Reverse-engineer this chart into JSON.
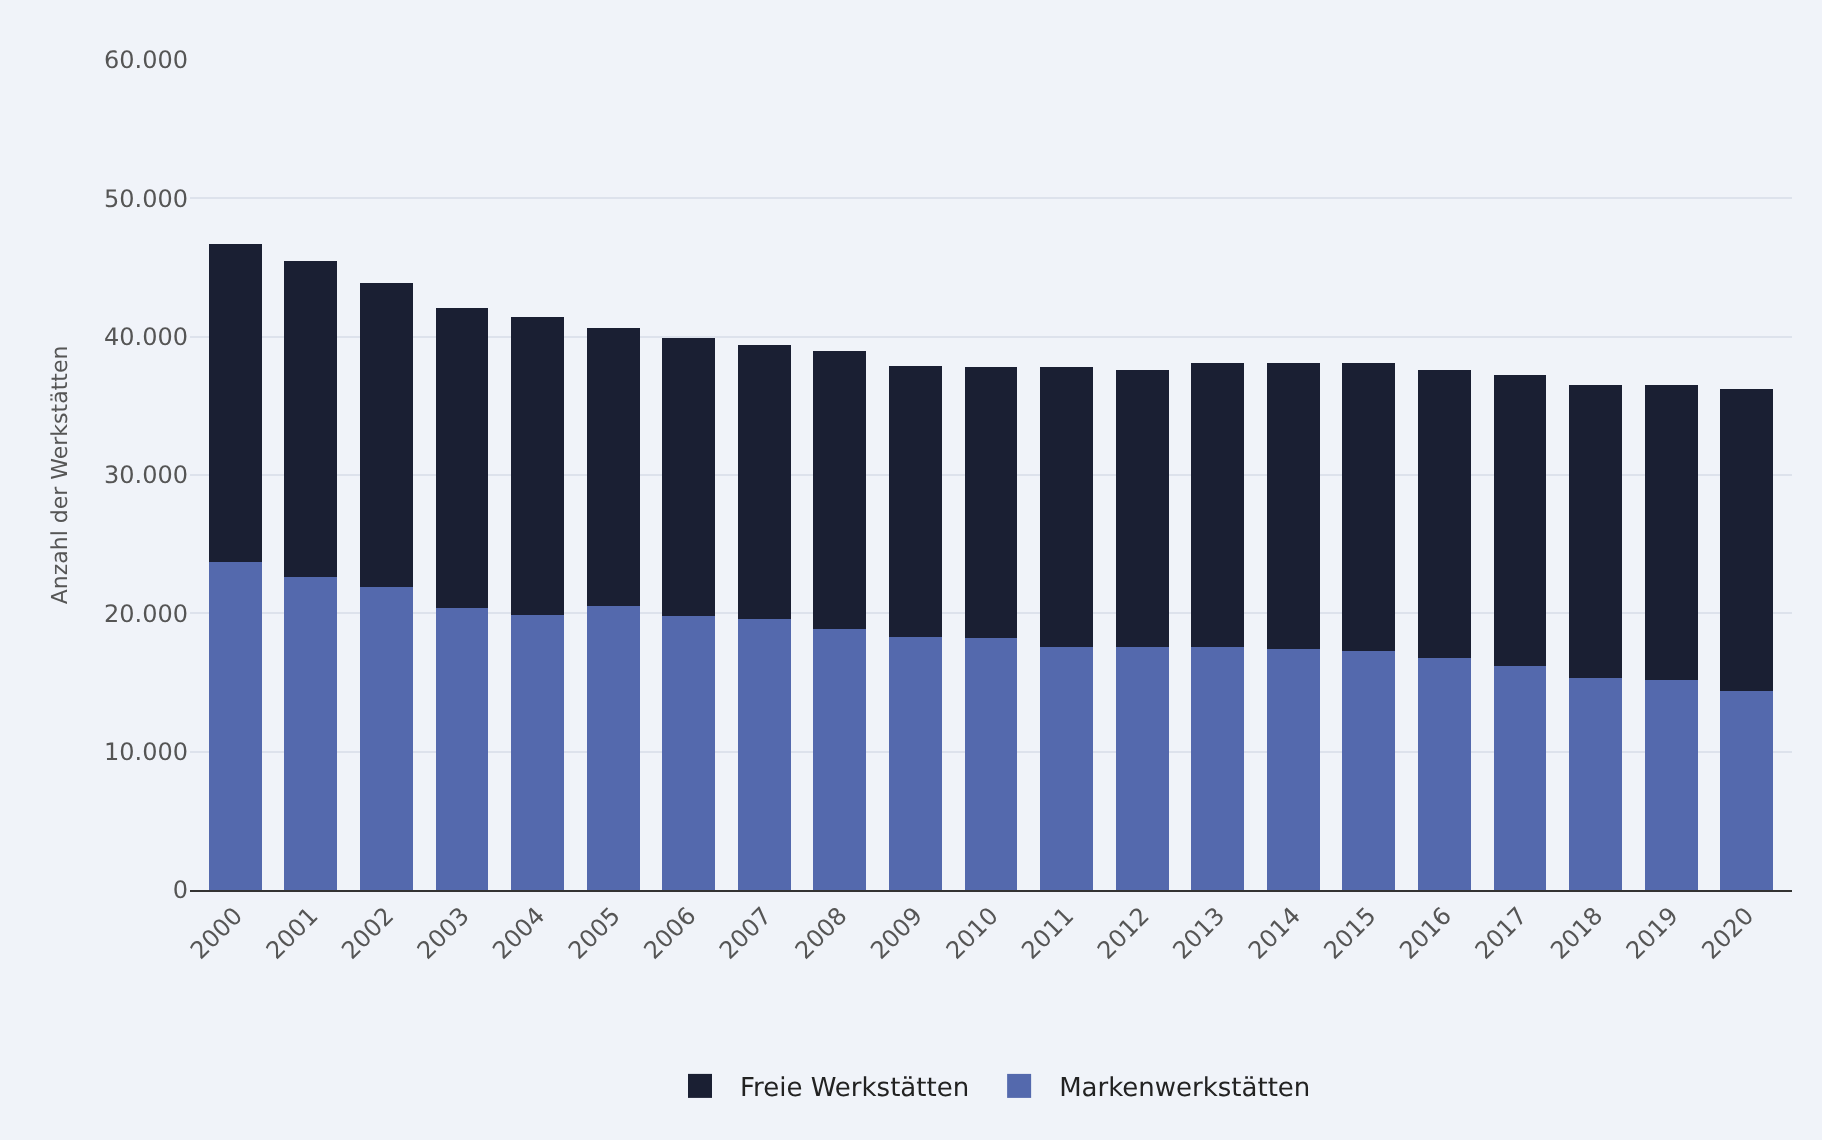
{
  "chart_data": {
    "type": "bar",
    "stacked": true,
    "ylabel": "Anzahl der Werkstätten",
    "categories": [
      "2000",
      "2001",
      "2002",
      "2003",
      "2004",
      "2005",
      "2006",
      "2007",
      "2008",
      "2009",
      "2010",
      "2011",
      "2012",
      "2013",
      "2014",
      "2015",
      "2016",
      "2017",
      "2018",
      "2019",
      "2020"
    ],
    "series": [
      {
        "name": "Markenwerkstätten",
        "color": "#5469ad",
        "values": [
          23700,
          22600,
          21900,
          20400,
          19900,
          20500,
          19800,
          19600,
          18900,
          18300,
          18200,
          17600,
          17600,
          17600,
          17400,
          17300,
          16800,
          16200,
          15300,
          15200,
          14400
        ]
      },
      {
        "name": "Freie Werkstätten",
        "color": "#1a1f33",
        "values": [
          23000,
          22900,
          22000,
          21700,
          21500,
          20100,
          20100,
          19800,
          20100,
          19600,
          19600,
          20200,
          20000,
          20500,
          20700,
          20800,
          20800,
          21000,
          21200,
          21300,
          21800
        ]
      }
    ],
    "ylim": [
      0,
      60000
    ],
    "yticks": [
      {
        "value": 0,
        "label": "0"
      },
      {
        "value": 10000,
        "label": "10.000"
      },
      {
        "value": 20000,
        "label": "20.000"
      },
      {
        "value": 30000,
        "label": "30.000"
      },
      {
        "value": 40000,
        "label": "40.000"
      },
      {
        "value": 50000,
        "label": "50.000"
      },
      {
        "value": 60000,
        "label": "60.000"
      }
    ],
    "grid": "y",
    "legend": "bottom"
  }
}
